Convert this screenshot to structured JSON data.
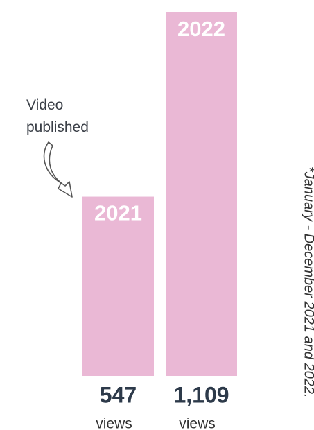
{
  "chart_data": {
    "type": "bar",
    "categories": [
      "2021",
      "2022"
    ],
    "values": [
      547,
      1109
    ],
    "value_labels": [
      "547",
      "1,109"
    ],
    "unit_labels": [
      "views",
      "views"
    ],
    "color": "#eab8d5",
    "ylim": [
      0,
      1109
    ],
    "annotation": "Video published",
    "footnote": "*January - December 2021 and 2022."
  }
}
